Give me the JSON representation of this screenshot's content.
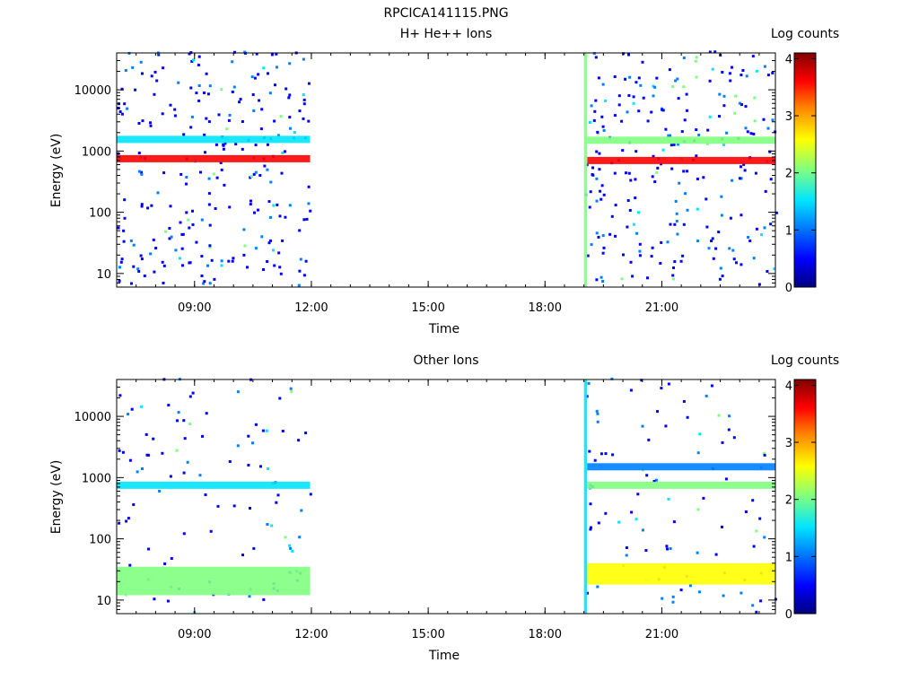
{
  "figure": {
    "title": "RPCICA141115.PNG"
  },
  "colormap": [
    "#00007f",
    "#0000ff",
    "#0080ff",
    "#00e5ff",
    "#7fff7f",
    "#ffff00",
    "#ff8000",
    "#ff0000",
    "#7f0000"
  ],
  "chart_data": [
    {
      "type": "heatmap",
      "title": "H+ He++ Ions",
      "xlabel": "Time",
      "ylabel": "Energy (eV)",
      "x_scale": "time-of-day",
      "y_scale": "log",
      "xlim": [
        "07:00",
        "23:55"
      ],
      "ylim": [
        6,
        40000
      ],
      "x_ticks": [
        "09:00",
        "12:00",
        "15:00",
        "18:00",
        "21:00"
      ],
      "y_ticks": [
        10,
        100,
        1000,
        10000
      ],
      "y_tick_labels": [
        "10",
        "100",
        "1000",
        "10000"
      ],
      "colorbar": {
        "title": "Log counts",
        "range": [
          0,
          4.1
        ],
        "ticks": [
          "0",
          "1",
          "2",
          "3",
          "4"
        ]
      },
      "data_gaps": [
        [
          "11:58",
          "19:00"
        ]
      ],
      "features": [
        {
          "time_range": [
            "07:00",
            "11:58"
          ],
          "energy_eV": 750,
          "log_counts": 3.6,
          "label": ""
        },
        {
          "time_range": [
            "07:00",
            "11:58"
          ],
          "energy_eV": 1550,
          "log_counts": 1.5,
          "label": ""
        },
        {
          "time_range": [
            "19:05",
            "23:55"
          ],
          "energy_eV": 700,
          "log_counts": 3.8,
          "label": ""
        },
        {
          "time_range": [
            "19:05",
            "23:55"
          ],
          "energy_eV": 1500,
          "log_counts": 1.8,
          "label": ""
        },
        {
          "time_range": [
            "19:00",
            "19:05"
          ],
          "energy_eV": [
            6,
            40000
          ],
          "log_counts": 1.8,
          "label": ""
        }
      ]
    },
    {
      "type": "heatmap",
      "title": "Other Ions",
      "xlabel": "Time",
      "ylabel": "Energy (eV)",
      "x_scale": "time-of-day",
      "y_scale": "log",
      "xlim": [
        "07:00",
        "23:55"
      ],
      "ylim": [
        6,
        40000
      ],
      "x_ticks": [
        "09:00",
        "12:00",
        "15:00",
        "18:00",
        "21:00"
      ],
      "y_ticks": [
        10,
        100,
        1000,
        10000
      ],
      "y_tick_labels": [
        "10",
        "100",
        "1000",
        "10000"
      ],
      "colorbar": {
        "title": "Log counts",
        "range": [
          0,
          4.1
        ],
        "ticks": [
          "0",
          "1",
          "2",
          "3",
          "4"
        ]
      },
      "data_gaps": [
        [
          "11:58",
          "19:00"
        ]
      ],
      "features": [
        {
          "time_range": [
            "07:00",
            "11:58"
          ],
          "energy_eV": 750,
          "log_counts": 1.5,
          "label": ""
        },
        {
          "time_range": [
            "07:00",
            "11:58"
          ],
          "energy_eV": [
            12,
            35
          ],
          "log_counts": 2.0,
          "label": ""
        },
        {
          "time_range": [
            "19:05",
            "23:55"
          ],
          "energy_eV": 750,
          "log_counts": 2.0,
          "label": ""
        },
        {
          "time_range": [
            "19:05",
            "23:55"
          ],
          "energy_eV": 1500,
          "log_counts": 1.2,
          "label": ""
        },
        {
          "time_range": [
            "19:05",
            "23:55"
          ],
          "energy_eV": [
            18,
            40
          ],
          "log_counts": 2.5,
          "label": ""
        },
        {
          "time_range": [
            "19:00",
            "19:05"
          ],
          "energy_eV": [
            6,
            40000
          ],
          "log_counts": 1.7,
          "label": ""
        }
      ]
    }
  ]
}
